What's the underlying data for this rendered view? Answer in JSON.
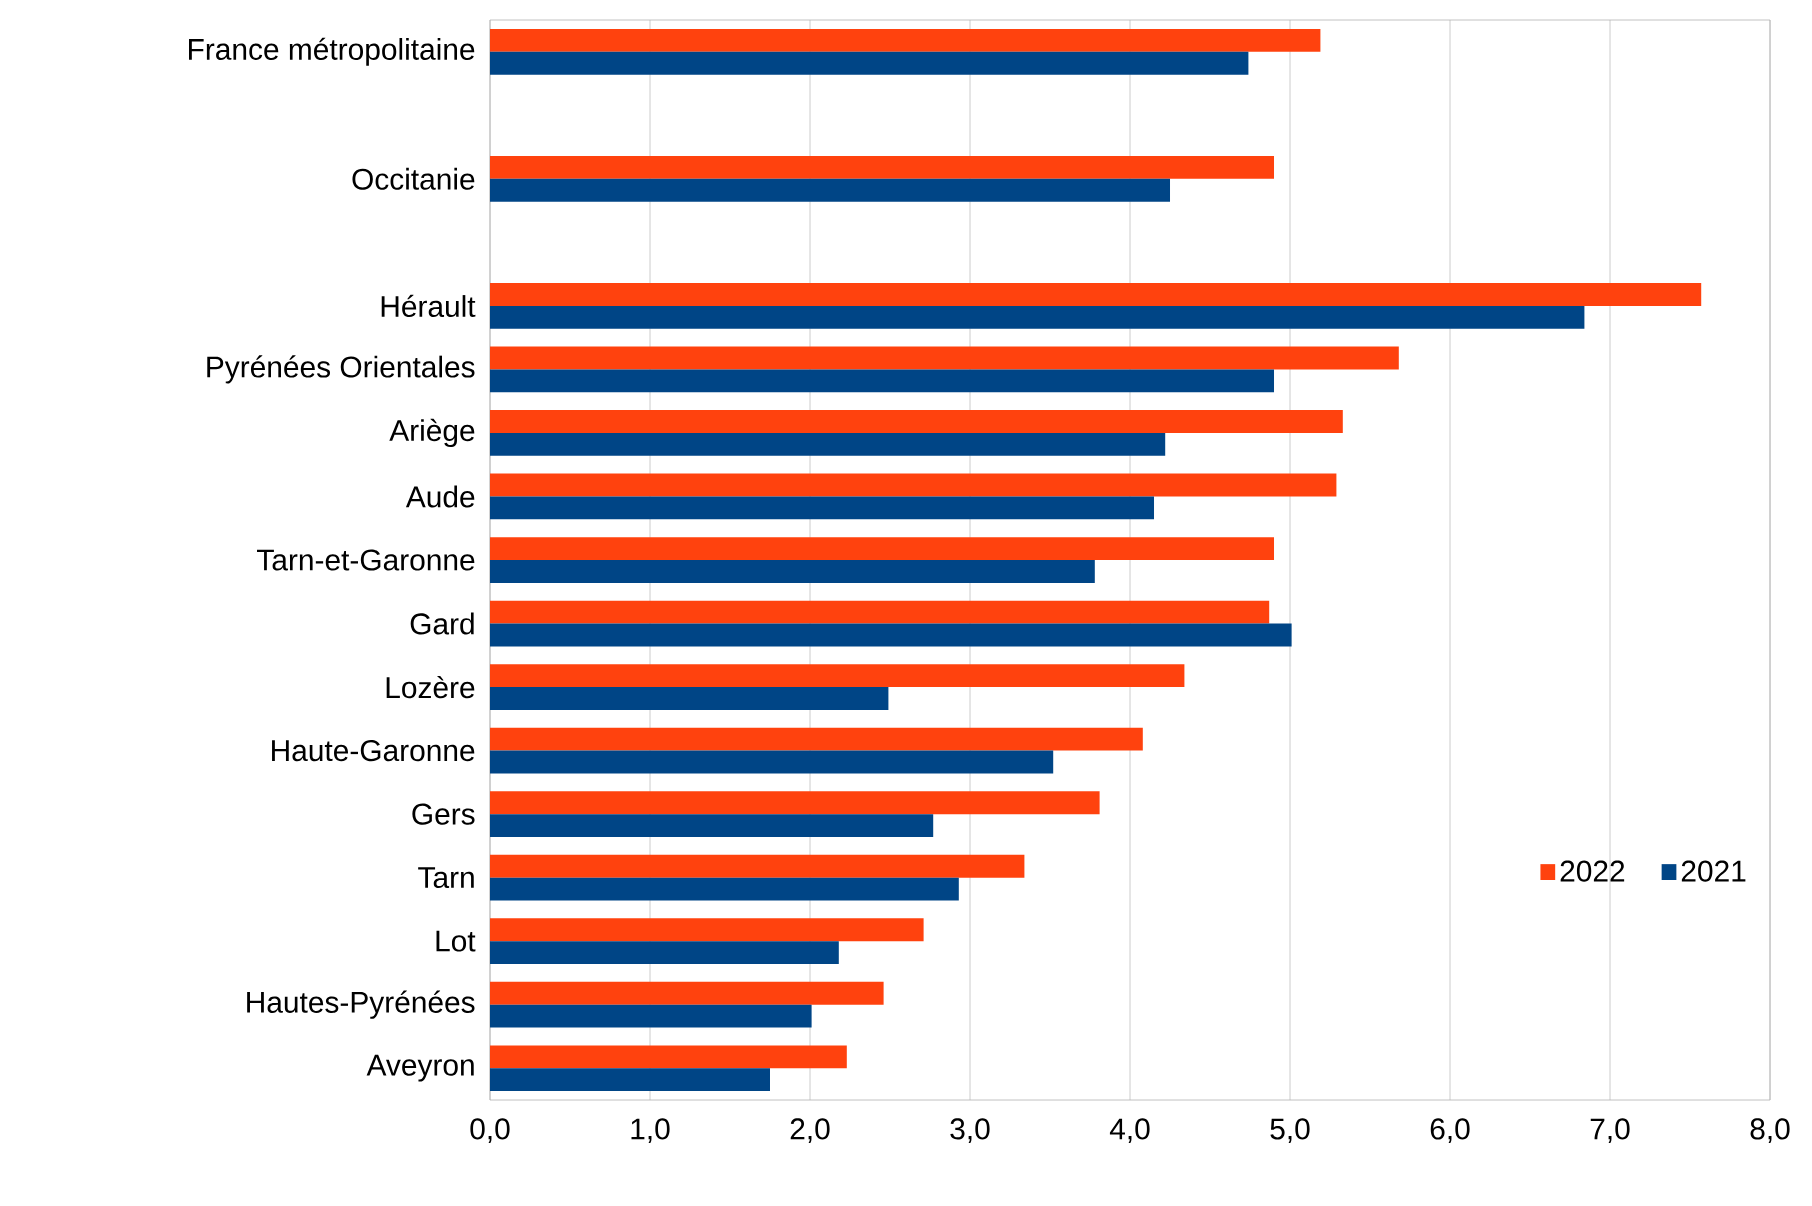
{
  "chart_data": {
    "type": "bar",
    "orientation": "horizontal",
    "categories": [
      "France métropolitaine",
      null,
      "Occitanie",
      null,
      "Hérault",
      "Pyrénées Orientales",
      "Ariège",
      "Aude",
      "Tarn-et-Garonne",
      "Gard",
      "Lozère",
      "Haute-Garonne",
      "Gers",
      "Tarn",
      "Lot",
      "Hautes-Pyrénées",
      "Aveyron"
    ],
    "series": [
      {
        "name": "2022",
        "color": "#ff420e",
        "values": [
          5.19,
          null,
          4.9,
          null,
          7.57,
          5.68,
          5.33,
          5.29,
          4.9,
          4.87,
          4.34,
          4.08,
          3.81,
          3.34,
          2.71,
          2.46,
          2.23
        ]
      },
      {
        "name": "2021",
        "color": "#004586",
        "values": [
          4.74,
          null,
          4.25,
          null,
          6.84,
          4.9,
          4.22,
          4.15,
          3.78,
          5.01,
          2.49,
          3.52,
          2.77,
          2.93,
          2.18,
          2.01,
          1.75
        ]
      }
    ],
    "xlim": [
      0,
      8
    ],
    "xticks": [
      {
        "value": 0,
        "label": "0,0"
      },
      {
        "value": 1,
        "label": "1,0"
      },
      {
        "value": 2,
        "label": "2,0"
      },
      {
        "value": 3,
        "label": "3,0"
      },
      {
        "value": 4,
        "label": "4,0"
      },
      {
        "value": 5,
        "label": "5,0"
      },
      {
        "value": 6,
        "label": "6,0"
      },
      {
        "value": 7,
        "label": "7,0"
      },
      {
        "value": 8,
        "label": "8,0"
      }
    ],
    "grid": "x",
    "legend": "right"
  }
}
